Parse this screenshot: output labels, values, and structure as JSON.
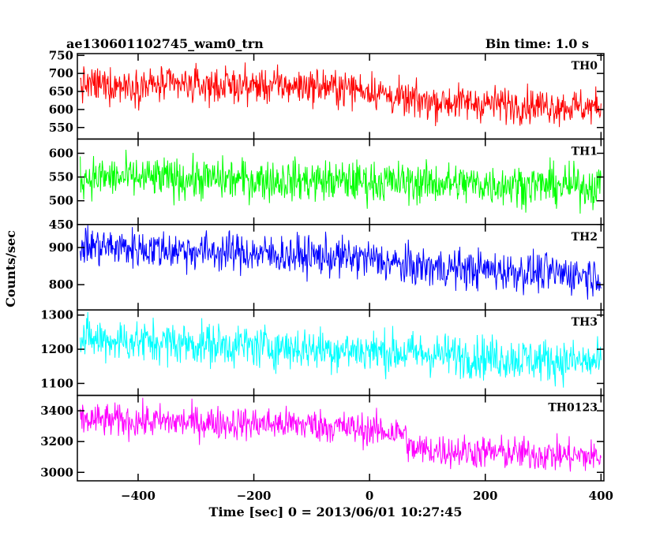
{
  "header": {
    "title": "ae130601102745_wam0_trn",
    "bin_time": "Bin time: 1.0 s"
  },
  "chart_data": {
    "type": "line",
    "xlabel": "Time [sec] 0 = 2013/06/01 10:27:45",
    "ylabel": "Counts/sec",
    "xlim": [
      -505,
      405
    ],
    "x_ticks": [
      -400,
      -200,
      0,
      200,
      400
    ],
    "x_tick_labels": [
      "−400",
      "−200",
      "0",
      "200",
      "400"
    ],
    "x_step": 1.0,
    "panels": [
      {
        "name": "TH0",
        "color": "#ff0000",
        "ylim": [
          518,
          755
        ],
        "y_ticks": [
          550,
          600,
          650,
          700,
          750
        ],
        "y_tick_labels": [
          "550",
          "600",
          "650",
          "700",
          "750"
        ],
        "trend": [
          {
            "x": -500,
            "y": 668
          },
          {
            "x": -100,
            "y": 665
          },
          {
            "x": 0,
            "y": 655
          },
          {
            "x": 60,
            "y": 625
          },
          {
            "x": 400,
            "y": 605
          }
        ],
        "scatter": 25
      },
      {
        "name": "TH1",
        "color": "#00ff00",
        "ylim": [
          450,
          630
        ],
        "y_ticks": [
          450,
          500,
          550,
          600
        ],
        "y_tick_labels": [
          "450",
          "500",
          "550",
          "600"
        ],
        "trend": [
          {
            "x": -500,
            "y": 550
          },
          {
            "x": 0,
            "y": 540
          },
          {
            "x": 400,
            "y": 530
          }
        ],
        "scatter": 22
      },
      {
        "name": "TH2",
        "color": "#0000ff",
        "ylim": [
          732,
          962
        ],
        "y_ticks": [
          800,
          900
        ],
        "y_tick_labels": [
          "800",
          "900"
        ],
        "trend": [
          {
            "x": -500,
            "y": 905
          },
          {
            "x": 0,
            "y": 870
          },
          {
            "x": 60,
            "y": 850
          },
          {
            "x": 400,
            "y": 825
          }
        ],
        "scatter": 27
      },
      {
        "name": "TH3",
        "color": "#00ffff",
        "ylim": [
          1065,
          1315
        ],
        "y_ticks": [
          1100,
          1200,
          1300
        ],
        "y_tick_labels": [
          "1100",
          "1200",
          "1300"
        ],
        "trend": [
          {
            "x": -500,
            "y": 1230
          },
          {
            "x": 0,
            "y": 1195
          },
          {
            "x": 400,
            "y": 1160
          }
        ],
        "scatter": 32
      },
      {
        "name": "TH0123",
        "color": "#ff00ff",
        "ylim": [
          2945,
          3500
        ],
        "y_ticks": [
          3000,
          3200,
          3400
        ],
        "y_tick_labels": [
          "3000",
          "3200",
          "3400"
        ],
        "trend": [
          {
            "x": -500,
            "y": 3340
          },
          {
            "x": -100,
            "y": 3310
          },
          {
            "x": 60,
            "y": 3255
          },
          {
            "x": 70,
            "y": 3150
          },
          {
            "x": 400,
            "y": 3100
          }
        ],
        "scatter": 55
      }
    ]
  }
}
